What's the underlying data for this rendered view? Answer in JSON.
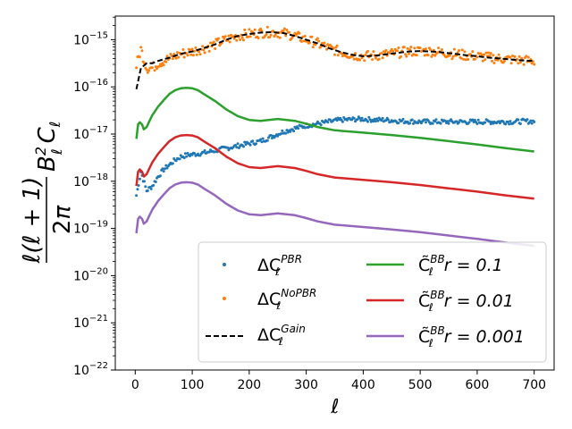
{
  "chart_data": {
    "type": "line",
    "xlabel": "ℓ",
    "ylabel": "ℓ(ℓ+1)/2π · B_ℓ² C_ℓ",
    "yscale": "log",
    "xlim": [
      -35,
      735
    ],
    "ylim_exp": [
      -22,
      -14.5
    ],
    "xticks": [
      0,
      100,
      200,
      300,
      400,
      500,
      600,
      700
    ],
    "yticks_exp": [
      -22,
      -21,
      -20,
      -19,
      -18,
      -17,
      -16,
      -15
    ],
    "legend_position": "lower-right",
    "series": [
      {
        "name": "ΔC_ℓ^PBR",
        "kind": "scatter",
        "color": "#1f77b4",
        "x": [
          2,
          10,
          20,
          30,
          40,
          50,
          60,
          70,
          80,
          90,
          100,
          120,
          140,
          160,
          180,
          200,
          220,
          240,
          260,
          280,
          300,
          320,
          340,
          360,
          380,
          400,
          420,
          440,
          460,
          480,
          500,
          520,
          540,
          560,
          580,
          600,
          620,
          640,
          660,
          680,
          700
        ],
        "log10y": [
          -18.3,
          -17.8,
          -18.2,
          -18.1,
          -17.9,
          -17.75,
          -17.65,
          -17.55,
          -17.48,
          -17.45,
          -17.43,
          -17.4,
          -17.35,
          -17.3,
          -17.25,
          -17.2,
          -17.15,
          -17.05,
          -16.95,
          -16.88,
          -16.82,
          -16.78,
          -16.74,
          -16.7,
          -16.69,
          -16.68,
          -16.7,
          -16.7,
          -16.72,
          -16.73,
          -16.74,
          -16.74,
          -16.74,
          -16.74,
          -16.74,
          -16.74,
          -16.74,
          -16.74,
          -16.74,
          -16.73,
          -16.73
        ]
      },
      {
        "name": "ΔC_ℓ^NoPBR",
        "kind": "scatter",
        "color": "#ff7f0e",
        "x": [
          2,
          10,
          20,
          30,
          40,
          60,
          80,
          100,
          120,
          140,
          160,
          180,
          200,
          220,
          240,
          260,
          280,
          300,
          320,
          340,
          360,
          380,
          400,
          420,
          440,
          460,
          480,
          500,
          520,
          540,
          560,
          580,
          600,
          620,
          640,
          660,
          680,
          700
        ],
        "log10y": [
          -15.55,
          -15.2,
          -15.6,
          -15.6,
          -15.5,
          -15.4,
          -15.3,
          -15.25,
          -15.18,
          -15.1,
          -15.0,
          -14.92,
          -14.88,
          -14.85,
          -14.84,
          -14.86,
          -14.92,
          -15.0,
          -15.08,
          -15.18,
          -15.26,
          -15.32,
          -15.35,
          -15.34,
          -15.31,
          -15.28,
          -15.25,
          -15.24,
          -15.25,
          -15.27,
          -15.3,
          -15.33,
          -15.35,
          -15.38,
          -15.4,
          -15.42,
          -15.44,
          -15.45
        ]
      },
      {
        "name": "ΔC_ℓ^Gain",
        "kind": "dashed",
        "color": "#000000",
        "x": [
          2,
          10,
          20,
          30,
          40,
          60,
          80,
          100,
          120,
          140,
          160,
          180,
          200,
          220,
          240,
          260,
          280,
          300,
          320,
          340,
          360,
          380,
          400,
          420,
          440,
          460,
          480,
          500,
          520,
          540,
          560,
          580,
          600,
          620,
          640,
          660,
          680,
          700
        ],
        "log10y": [
          -16.05,
          -15.6,
          -15.5,
          -15.5,
          -15.45,
          -15.38,
          -15.3,
          -15.25,
          -15.18,
          -15.1,
          -15.0,
          -14.92,
          -14.88,
          -14.85,
          -14.84,
          -14.86,
          -14.92,
          -15.0,
          -15.08,
          -15.18,
          -15.26,
          -15.32,
          -15.35,
          -15.34,
          -15.31,
          -15.28,
          -15.25,
          -15.24,
          -15.25,
          -15.27,
          -15.3,
          -15.33,
          -15.35,
          -15.38,
          -15.4,
          -15.42,
          -15.44,
          -15.45
        ]
      },
      {
        "name": "C̃_ℓ^BB r = 0.1",
        "kind": "line",
        "color": "#2ca02c",
        "x": [
          2,
          5,
          8,
          12,
          15,
          20,
          25,
          30,
          40,
          50,
          60,
          70,
          80,
          90,
          100,
          110,
          120,
          140,
          160,
          180,
          200,
          220,
          250,
          280,
          300,
          320,
          350,
          400,
          450,
          500,
          550,
          600,
          650,
          700
        ],
        "log10y": [
          -17.1,
          -16.8,
          -16.75,
          -16.8,
          -16.9,
          -16.85,
          -16.72,
          -16.6,
          -16.42,
          -16.28,
          -16.15,
          -16.07,
          -16.03,
          -16.02,
          -16.03,
          -16.07,
          -16.15,
          -16.3,
          -16.48,
          -16.62,
          -16.7,
          -16.72,
          -16.68,
          -16.72,
          -16.78,
          -16.85,
          -16.92,
          -16.97,
          -17.02,
          -17.08,
          -17.15,
          -17.22,
          -17.3,
          -17.37
        ]
      },
      {
        "name": "C̃_ℓ^BB r = 0.01",
        "kind": "line",
        "color": "#d62728",
        "x": [
          2,
          5,
          8,
          12,
          15,
          20,
          25,
          30,
          40,
          50,
          60,
          70,
          80,
          90,
          100,
          110,
          120,
          140,
          160,
          180,
          200,
          220,
          250,
          280,
          300,
          320,
          350,
          400,
          450,
          500,
          550,
          600,
          650,
          700
        ],
        "log10y": [
          -18.1,
          -17.8,
          -17.75,
          -17.8,
          -17.9,
          -17.85,
          -17.72,
          -17.6,
          -17.42,
          -17.28,
          -17.15,
          -17.07,
          -17.03,
          -17.02,
          -17.03,
          -17.07,
          -17.15,
          -17.3,
          -17.48,
          -17.62,
          -17.7,
          -17.72,
          -17.68,
          -17.72,
          -17.78,
          -17.85,
          -17.92,
          -17.97,
          -18.02,
          -18.08,
          -18.15,
          -18.22,
          -18.3,
          -18.37
        ]
      },
      {
        "name": "C̃_ℓ^BB r = 0.001",
        "kind": "line",
        "color": "#9467bd",
        "x": [
          2,
          5,
          8,
          12,
          15,
          20,
          25,
          30,
          40,
          50,
          60,
          70,
          80,
          90,
          100,
          110,
          120,
          140,
          160,
          180,
          200,
          220,
          250,
          280,
          300,
          320,
          350,
          400,
          450,
          500,
          550,
          600,
          650,
          700
        ],
        "log10y": [
          -19.1,
          -18.8,
          -18.75,
          -18.8,
          -18.9,
          -18.85,
          -18.72,
          -18.6,
          -18.42,
          -18.28,
          -18.15,
          -18.07,
          -18.03,
          -18.02,
          -18.03,
          -18.07,
          -18.15,
          -18.3,
          -18.48,
          -18.62,
          -18.7,
          -18.72,
          -18.68,
          -18.72,
          -18.78,
          -18.85,
          -18.92,
          -18.97,
          -19.02,
          -19.08,
          -19.15,
          -19.22,
          -19.3,
          -19.37
        ]
      }
    ],
    "legend": {
      "pbr": "ΔC",
      "pbr_sup": "PBR",
      "nopbr": "ΔC",
      "nopbr_sup": "NoPBR",
      "gain": "ΔC",
      "gain_sup": "Gain",
      "r01": "C̃",
      "r01_sup": "BB",
      "r01_val": "r = 0.1",
      "r001": "C̃",
      "r001_sup": "BB",
      "r001_val": "r = 0.01",
      "r0001": "C̃",
      "r0001_sup": "BB",
      "r0001_val": "r = 0.001",
      "sub": "ℓ"
    }
  }
}
